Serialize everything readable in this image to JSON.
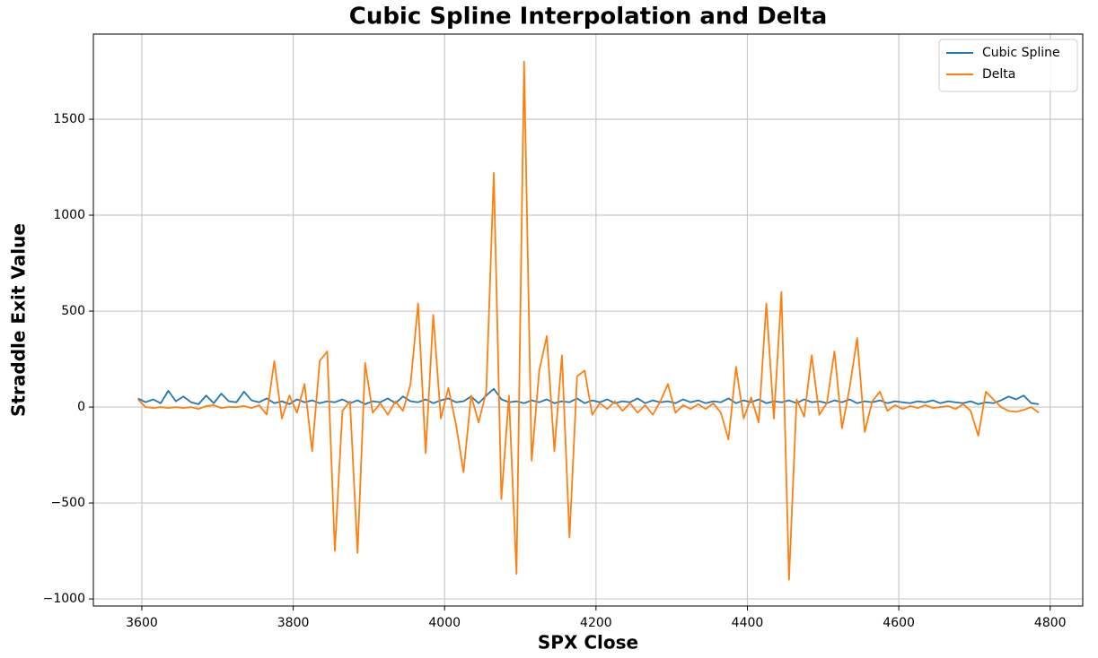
{
  "chart_data": {
    "type": "line",
    "title": "Cubic Spline Interpolation and Delta",
    "xlabel": "SPX Close",
    "ylabel": "Straddle Exit Value",
    "x": [
      3595,
      3605,
      3615,
      3625,
      3635,
      3645,
      3655,
      3665,
      3675,
      3685,
      3695,
      3705,
      3715,
      3725,
      3735,
      3745,
      3755,
      3765,
      3775,
      3785,
      3795,
      3805,
      3815,
      3825,
      3835,
      3845,
      3855,
      3865,
      3875,
      3885,
      3895,
      3905,
      3915,
      3925,
      3935,
      3945,
      3955,
      3965,
      3975,
      3985,
      3995,
      4005,
      4015,
      4025,
      4035,
      4045,
      4055,
      4065,
      4075,
      4085,
      4095,
      4105,
      4115,
      4125,
      4135,
      4145,
      4155,
      4165,
      4175,
      4185,
      4195,
      4205,
      4215,
      4225,
      4235,
      4245,
      4255,
      4265,
      4275,
      4285,
      4295,
      4305,
      4315,
      4325,
      4335,
      4345,
      4355,
      4365,
      4375,
      4385,
      4395,
      4405,
      4415,
      4425,
      4435,
      4445,
      4455,
      4465,
      4475,
      4485,
      4495,
      4505,
      4515,
      4525,
      4535,
      4545,
      4555,
      4565,
      4575,
      4585,
      4595,
      4605,
      4615,
      4625,
      4635,
      4645,
      4655,
      4665,
      4675,
      4685,
      4695,
      4705,
      4715,
      4725,
      4735,
      4745,
      4755,
      4765,
      4775,
      4785
    ],
    "series": [
      {
        "name": "Cubic Spline",
        "color": "#1f77b4",
        "values": [
          45,
          25,
          40,
          20,
          85,
          30,
          55,
          25,
          15,
          60,
          20,
          70,
          30,
          25,
          80,
          35,
          25,
          45,
          20,
          30,
          15,
          40,
          25,
          35,
          20,
          30,
          25,
          40,
          20,
          35,
          15,
          30,
          25,
          45,
          20,
          55,
          30,
          25,
          40,
          20,
          35,
          45,
          25,
          30,
          55,
          20,
          60,
          95,
          40,
          25,
          30,
          20,
          35,
          25,
          40,
          20,
          30,
          25,
          45,
          20,
          35,
          25,
          40,
          20,
          30,
          25,
          45,
          20,
          35,
          25,
          30,
          20,
          40,
          25,
          35,
          20,
          30,
          25,
          45,
          20,
          35,
          25,
          40,
          20,
          30,
          25,
          35,
          20,
          40,
          25,
          30,
          20,
          35,
          25,
          40,
          20,
          30,
          25,
          35,
          20,
          30,
          25,
          20,
          30,
          25,
          35,
          20,
          30,
          25,
          20,
          30,
          15,
          25,
          20,
          35,
          55,
          40,
          60,
          20,
          15
        ]
      },
      {
        "name": "Delta",
        "color": "#ff7f0e",
        "values": [
          40,
          0,
          -5,
          0,
          -5,
          0,
          -5,
          0,
          -10,
          5,
          10,
          -5,
          0,
          0,
          5,
          -5,
          10,
          -40,
          240,
          -60,
          60,
          -30,
          120,
          -230,
          240,
          290,
          -750,
          -20,
          30,
          -760,
          230,
          -30,
          20,
          -40,
          30,
          -20,
          120,
          540,
          -240,
          480,
          -60,
          100,
          -90,
          -340,
          60,
          -80,
          80,
          1220,
          -480,
          60,
          -870,
          1800,
          -280,
          190,
          370,
          -230,
          270,
          -680,
          160,
          190,
          -40,
          20,
          -10,
          30,
          -20,
          20,
          -30,
          10,
          -40,
          30,
          120,
          -30,
          10,
          -10,
          15,
          -10,
          20,
          -30,
          -170,
          210,
          -60,
          50,
          -80,
          540,
          -60,
          600,
          -900,
          40,
          -50,
          270,
          -40,
          20,
          290,
          -110,
          100,
          360,
          -130,
          30,
          80,
          -20,
          10,
          -10,
          5,
          -5,
          10,
          -5,
          0,
          5,
          -10,
          15,
          -20,
          -150,
          80,
          40,
          0,
          -20,
          -25,
          -15,
          0,
          -30
        ]
      }
    ],
    "xlim": [
      3536,
      4843
    ],
    "ylim": [
      -1037,
      1944
    ],
    "xticks": [
      3600,
      3800,
      4000,
      4200,
      4400,
      4600,
      4800
    ],
    "yticks": [
      {
        "value": -1000,
        "label": "−1000"
      },
      {
        "value": -500,
        "label": "−500"
      },
      0,
      500,
      1000,
      1500
    ],
    "grid": true,
    "legend": "upper right"
  }
}
